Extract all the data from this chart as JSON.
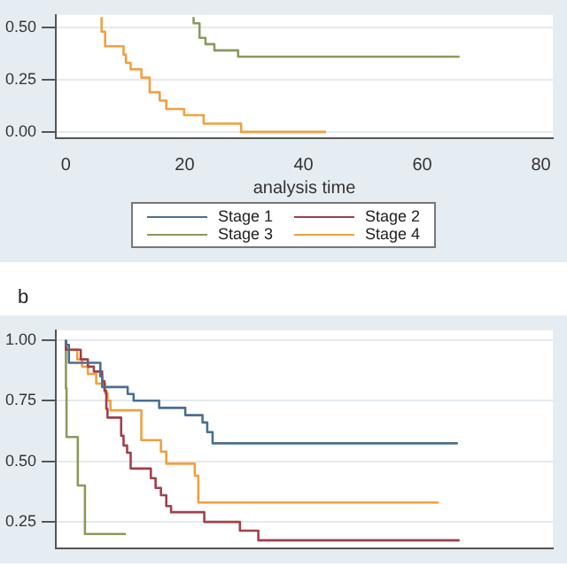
{
  "chart_data": [
    {
      "type": "step",
      "xlabel": "analysis time",
      "xlim": [
        -1.7,
        82
      ],
      "xticks": [
        0,
        20,
        40,
        60,
        80
      ],
      "ylim": [
        -0.03,
        0.56
      ],
      "yticks": [
        {
          "value": 0,
          "label": "0.00"
        },
        {
          "value": 0.25,
          "label": "0.25"
        },
        {
          "value": 0.5,
          "label": "0.50"
        }
      ],
      "grid": "y",
      "legend": "bottom",
      "marker": "none",
      "series": [
        {
          "name": "Stage 1",
          "color": "#4a6f8f"
        },
        {
          "name": "Stage 2",
          "color": "#a0404a"
        },
        {
          "name": "Stage 3",
          "color": "#8a9a5b",
          "x": [
            21.5,
            22.5,
            23.5,
            25,
            29,
            32.5,
            66.3
          ],
          "values": [
            0.55,
            0.52,
            0.45,
            0.42,
            0.39,
            0.36,
            0.36
          ]
        },
        {
          "name": "Stage 4",
          "color": "#f0a040",
          "x": [
            6,
            6.6,
            9.7,
            10.1,
            10.9,
            12.7,
            14.1,
            15.8,
            16.9,
            19.9,
            23.2,
            29.5,
            43.8
          ],
          "values": [
            0.55,
            0.48,
            0.41,
            0.37,
            0.33,
            0.3,
            0.26,
            0.19,
            0.15,
            0.11,
            0.08,
            0.04,
            0
          ]
        }
      ]
    },
    {
      "type": "step",
      "title": "b",
      "xlim": [
        -1.7,
        82
      ],
      "ylim": [
        0.14,
        1.04
      ],
      "yticks": [
        {
          "value": 0.25,
          "label": "0.25"
        },
        {
          "value": 0.5,
          "label": "0.50"
        },
        {
          "value": 0.75,
          "label": "0.75"
        },
        {
          "value": 1,
          "label": "1.00"
        }
      ],
      "grid": "y",
      "tick_labels": "y",
      "marker": "none",
      "series": [
        {
          "color": "#4a6f8f",
          "x": [
            0,
            0.5,
            5.8,
            6.1,
            10.4,
            11.4,
            15.7,
            20.1,
            23,
            23.8,
            24.7,
            28.8,
            66
          ],
          "values": [
            1,
            0.98,
            0.906,
            0.85,
            0.806,
            0.777,
            0.75,
            0.72,
            0.69,
            0.66,
            0.62,
            0.574,
            0.574
          ]
        },
        {
          "color": "#a0404a",
          "x": [
            0,
            2.5,
            3.7,
            4.7,
            6.1,
            6.5,
            6.8,
            7,
            9.3,
            9.7,
            10.3,
            10.9,
            14.3,
            15.1,
            16,
            16.9,
            17.7,
            23.3,
            29.3,
            32.4,
            36.3,
            66.3
          ],
          "values": [
            1,
            0.96,
            0.92,
            0.89,
            0.87,
            0.83,
            0.79,
            0.716,
            0.68,
            0.605,
            0.565,
            0.535,
            0.47,
            0.43,
            0.39,
            0.36,
            0.315,
            0.29,
            0.25,
            0.214,
            0.174,
            0.174
          ]
        },
        {
          "color": "#8a9a5b",
          "x": [
            0,
            0.1,
            2,
            3.2,
            4.4,
            10.1
          ],
          "values": [
            1,
            0.8,
            0.6,
            0.4,
            0.2,
            0.2
          ]
        },
        {
          "color": "#f0a040",
          "x": [
            0,
            1.9,
            2.7,
            3.7,
            5.1,
            6.6,
            7,
            7.5,
            12.7,
            16,
            16.9,
            21.7,
            22.3,
            43.8,
            62.8
          ],
          "values": [
            1,
            0.96,
            0.92,
            0.89,
            0.86,
            0.82,
            0.78,
            0.75,
            0.71,
            0.587,
            0.54,
            0.49,
            0.44,
            0.33,
            0.33
          ]
        }
      ]
    }
  ]
}
